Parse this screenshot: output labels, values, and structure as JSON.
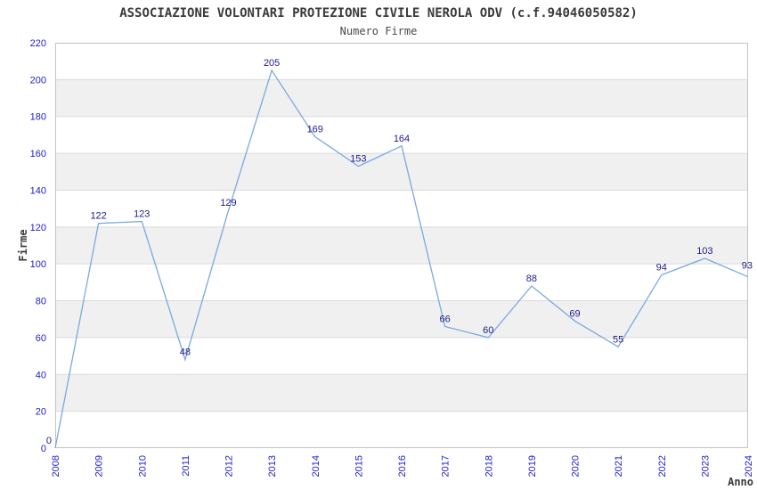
{
  "chart_data": {
    "type": "line",
    "title": "ASSOCIAZIONE VOLONTARI PROTEZIONE CIVILE NEROLA ODV (c.f.94046050582)",
    "subtitle": "Numero Firme",
    "xlabel": "Anno",
    "ylabel": "Firme",
    "x": [
      2008,
      2009,
      2010,
      2011,
      2012,
      2013,
      2014,
      2015,
      2016,
      2017,
      2018,
      2019,
      2020,
      2021,
      2022,
      2023,
      2024
    ],
    "values": [
      0,
      122,
      123,
      48,
      129,
      205,
      169,
      153,
      164,
      66,
      60,
      88,
      69,
      55,
      94,
      103,
      93
    ],
    "ylim": [
      0,
      220
    ],
    "ytick_step": 20,
    "grid": "horizontal-bands-and-lines",
    "legend": "none",
    "colors": {
      "line": "#79a9e2",
      "data_label": "#1c1c8c",
      "tick_label": "#2020cc",
      "axis_title": "#3a3a3a",
      "band_fill": "#f0f0f0",
      "grid_line": "#dadada",
      "plot_border": "#c4c4c4",
      "background": "#ffffff"
    }
  }
}
